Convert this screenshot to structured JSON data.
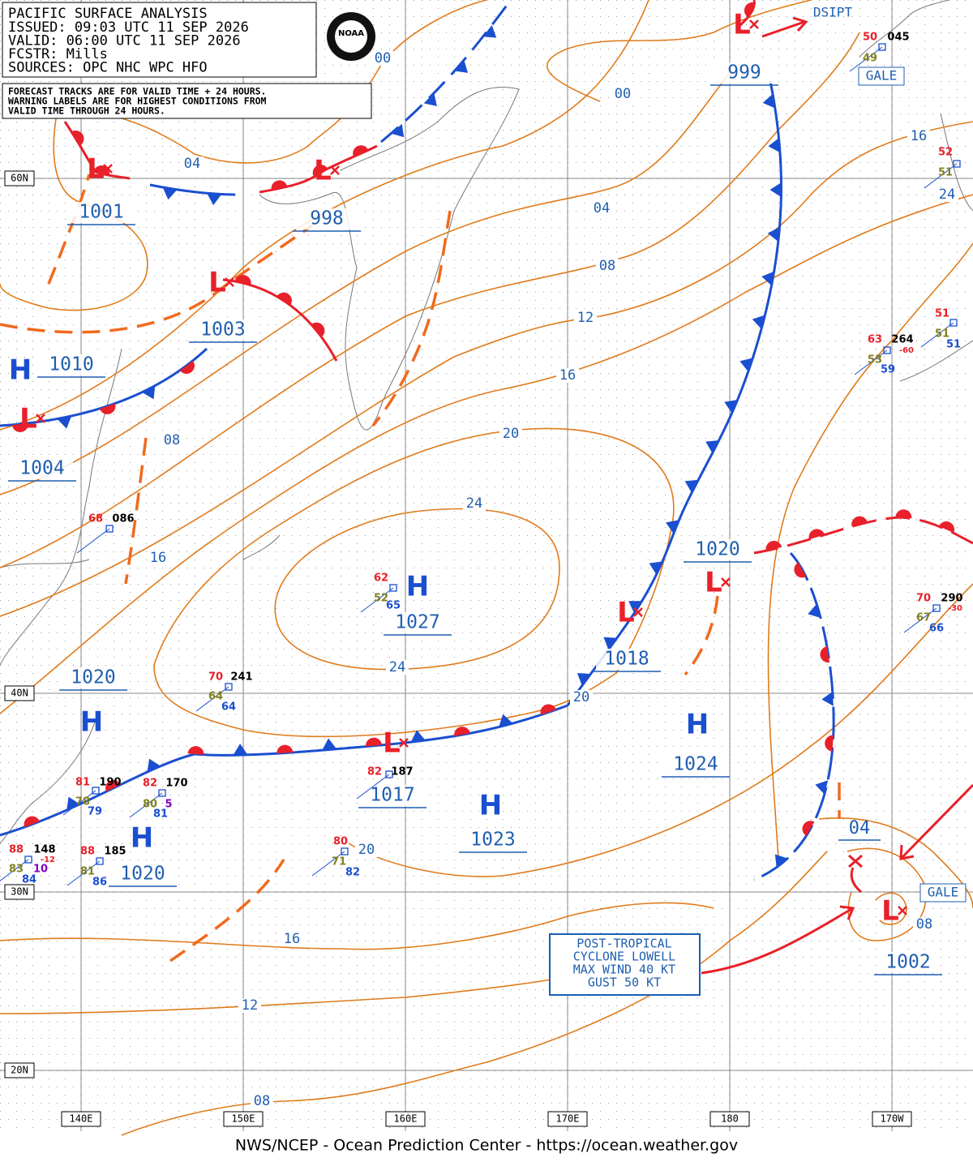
{
  "header": {
    "title": "PACIFIC SURFACE ANALYSIS",
    "lines": [
      "ISSUED:  09:03 UTC 11 SEP 2026",
      "VALID:  06:00 UTC 11 SEP 2026",
      "FCSTR:  Mills",
      "SOURCES:  OPC NHC WPC HFO"
    ],
    "logo": "NOAA"
  },
  "notes": [
    "FORECAST TRACKS ARE FOR VALID TIME + 24 HOURS.",
    "WARNING LABELS ARE FOR HIGHEST CONDITIONS FROM",
    "VALID TIME THROUGH 24 HOURS."
  ],
  "lat_labels": [
    "60N",
    "40N",
    "30N",
    "20N"
  ],
  "lon_labels": [
    "140E",
    "150E",
    "160E",
    "170E",
    "180",
    "170W"
  ],
  "pressure_centers": [
    {
      "symbol": "L",
      "value": "1001"
    },
    {
      "symbol": "L",
      "value": "998"
    },
    {
      "symbol": "L",
      "value": "1003"
    },
    {
      "symbol": "H",
      "value": "1010"
    },
    {
      "symbol": "L",
      "value": "1004"
    },
    {
      "symbol": "L",
      "value": "999"
    },
    {
      "symbol": "L",
      "value": "1018"
    },
    {
      "symbol": "L",
      "value": "1020"
    },
    {
      "symbol": "H",
      "value": "1027"
    },
    {
      "symbol": "H",
      "value": "1020"
    },
    {
      "symbol": "H",
      "value": "1024"
    },
    {
      "symbol": "L",
      "value": "1017"
    },
    {
      "symbol": "H",
      "value": "1023"
    },
    {
      "symbol": "H",
      "value": "1020"
    },
    {
      "symbol": "L",
      "value": "1002"
    }
  ],
  "isobar_labels": [
    "00",
    "00",
    "04",
    "04",
    "04",
    "08",
    "08",
    "08",
    "08",
    "12",
    "12",
    "16",
    "16",
    "16",
    "16",
    "20",
    "20",
    "20",
    "24",
    "24",
    "24"
  ],
  "warnings": [
    "DSIPT",
    "GALE",
    "GALE"
  ],
  "storm_box": [
    "POST-TROPICAL",
    "CYCLONE LOWELL",
    "MAX WIND 40 KT",
    "GUST 50 KT"
  ],
  "stations": [
    [
      "68",
      "086"
    ],
    [
      "62",
      "52",
      "65"
    ],
    [
      "70",
      "241",
      "64",
      "64"
    ],
    [
      "81",
      "190",
      "78",
      "79"
    ],
    [
      "82",
      "170",
      "80",
      "81",
      "5"
    ],
    [
      "88",
      "148",
      "83",
      "84",
      "10",
      "-12"
    ],
    [
      "88",
      "185",
      "81",
      "86"
    ],
    [
      "82",
      "187"
    ],
    [
      "80",
      "71",
      "82"
    ],
    [
      "50",
      "045",
      "49"
    ],
    [
      "52",
      "51"
    ],
    [
      "63",
      "264",
      "53",
      "59",
      "-60"
    ],
    [
      "51",
      "51",
      "51"
    ],
    [
      "70",
      "290",
      "67",
      "66",
      "-30"
    ]
  ],
  "footer": "NWS/NCEP - Ocean Prediction Center - https://ocean.weather.gov"
}
